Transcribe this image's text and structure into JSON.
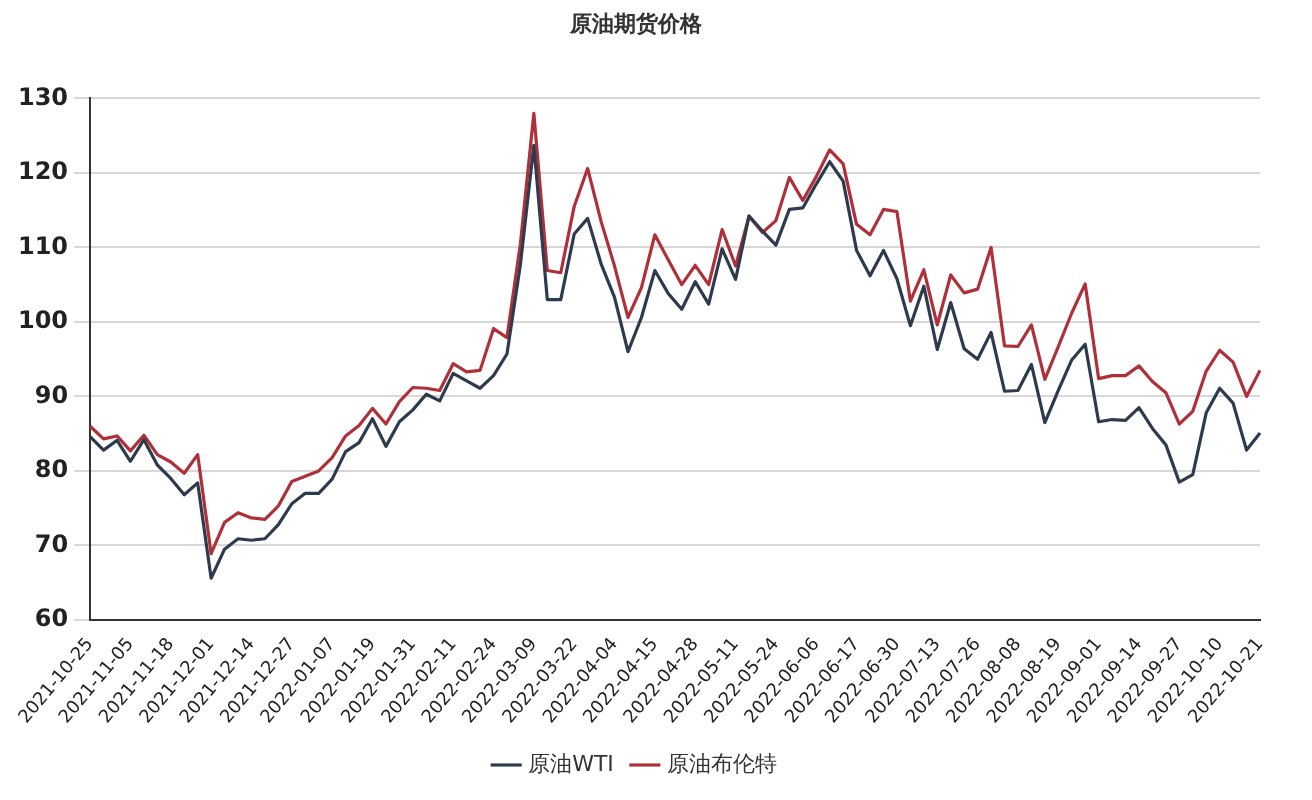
{
  "chart_data": {
    "type": "line",
    "title": "原油期货价格",
    "categories": [
      "2021-10-25",
      null,
      null,
      "2021-11-05",
      null,
      null,
      "2021-11-18",
      null,
      null,
      "2021-12-01",
      null,
      null,
      "2021-12-14",
      null,
      null,
      "2021-12-27",
      null,
      null,
      "2022-01-07",
      null,
      null,
      "2022-01-19",
      null,
      null,
      "2022-01-31",
      null,
      null,
      "2022-02-11",
      null,
      null,
      "2022-02-24",
      null,
      null,
      "2022-03-09",
      null,
      null,
      "2022-03-22",
      null,
      null,
      "2022-04-04",
      null,
      null,
      "2022-04-15",
      null,
      null,
      "2022-04-28",
      null,
      null,
      "2022-05-11",
      null,
      null,
      "2022-05-24",
      null,
      null,
      "2022-06-06",
      null,
      null,
      "2022-06-17",
      null,
      null,
      "2022-06-30",
      null,
      null,
      "2022-07-13",
      null,
      null,
      "2022-07-26",
      null,
      null,
      "2022-08-08",
      null,
      null,
      "2022-08-19",
      null,
      null,
      "2022-09-01",
      null,
      null,
      "2022-09-14",
      null,
      null,
      "2022-09-27",
      null,
      null,
      "2022-10-10",
      null,
      null,
      "2022-10-21"
    ],
    "series": [
      {
        "name": "原油WTI",
        "color": "#2e3b4e",
        "values": [
          84.6,
          82.8,
          84.1,
          81.3,
          84.2,
          80.8,
          79.0,
          76.8,
          78.4,
          65.6,
          69.5,
          70.9,
          70.7,
          70.9,
          72.8,
          75.6,
          77.0,
          77.0,
          78.9,
          82.6,
          83.8,
          87.0,
          83.3,
          86.6,
          88.2,
          90.3,
          89.4,
          93.1,
          92.1,
          91.1,
          92.8,
          95.7,
          107.7,
          123.7,
          103.0,
          103.0,
          111.8,
          113.9,
          107.8,
          103.3,
          96.0,
          100.6,
          106.9,
          103.8,
          101.7,
          105.4,
          102.4,
          109.8,
          105.7,
          114.2,
          112.2,
          110.3,
          115.1,
          115.3,
          118.5,
          121.5,
          118.9,
          109.6,
          106.2,
          109.6,
          105.8,
          99.5,
          104.8,
          96.3,
          102.6,
          96.4,
          95.0,
          98.6,
          90.7,
          90.8,
          94.3,
          86.5,
          90.8,
          94.9,
          97.0,
          86.6,
          86.9,
          86.8,
          88.5,
          85.7,
          83.5,
          78.5,
          79.5,
          87.8,
          91.1,
          89.1,
          82.8,
          85.1
        ]
      },
      {
        "name": "原油布伦特",
        "color": "#b0303a",
        "values": [
          86.0,
          84.3,
          84.7,
          82.7,
          84.8,
          82.2,
          81.2,
          79.7,
          82.2,
          68.9,
          73.1,
          74.4,
          73.7,
          73.5,
          75.3,
          78.6,
          79.3,
          80.0,
          81.8,
          84.7,
          86.1,
          88.4,
          86.3,
          89.3,
          91.2,
          91.1,
          90.8,
          94.4,
          93.3,
          93.5,
          99.1,
          97.9,
          110.5,
          128.0,
          106.9,
          106.6,
          115.5,
          120.6,
          113.5,
          107.5,
          100.6,
          104.6,
          111.7,
          108.3,
          105.0,
          107.6,
          105.0,
          112.4,
          107.5,
          114.2,
          112.0,
          113.6,
          119.4,
          116.3,
          119.5,
          123.1,
          121.2,
          113.1,
          111.7,
          115.1,
          114.8,
          102.8,
          107.0,
          99.6,
          106.3,
          103.9,
          104.4,
          110.0,
          96.8,
          96.7,
          99.6,
          92.3,
          96.7,
          101.2,
          105.1,
          92.4,
          92.8,
          92.8,
          94.1,
          92.0,
          90.5,
          86.3,
          88.0,
          93.4,
          96.2,
          94.6,
          90.0,
          93.5
        ]
      }
    ],
    "ylim": [
      60,
      130
    ],
    "yticks": [
      60,
      70,
      80,
      90,
      100,
      110,
      120,
      130
    ],
    "grid": "y",
    "legend": "bottom",
    "marker": "none",
    "line_style": "solid"
  }
}
